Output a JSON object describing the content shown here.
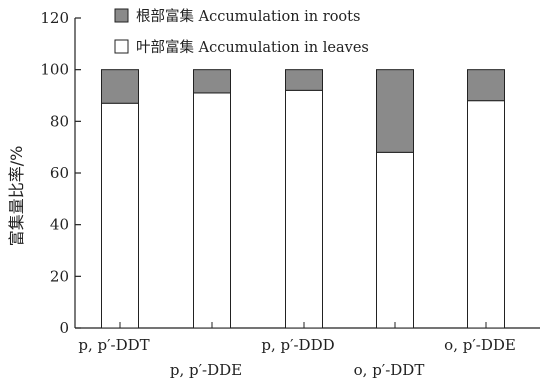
{
  "chart_data": {
    "type": "bar",
    "stacked": true,
    "categories": [
      "p, p′-DDT",
      "p, p′-DDE",
      "p, p′-DDD",
      "o, p′-DDT",
      "o, p′-DDE"
    ],
    "series": [
      {
        "name": "叶部富集 Accumulation in leaves",
        "color": "#ffffff",
        "values": [
          87,
          91,
          92,
          68,
          88
        ]
      },
      {
        "name": "根部富集 Accumulation in roots",
        "color": "#8a8a8a",
        "values": [
          13,
          9,
          8,
          32,
          12
        ]
      }
    ],
    "ylabel": "富集量比率/%",
    "xlabel": "",
    "ylim": [
      0,
      120
    ],
    "yticks": [
      0,
      20,
      40,
      60,
      80,
      100,
      120
    ],
    "legend_position": "top",
    "grid": false
  }
}
